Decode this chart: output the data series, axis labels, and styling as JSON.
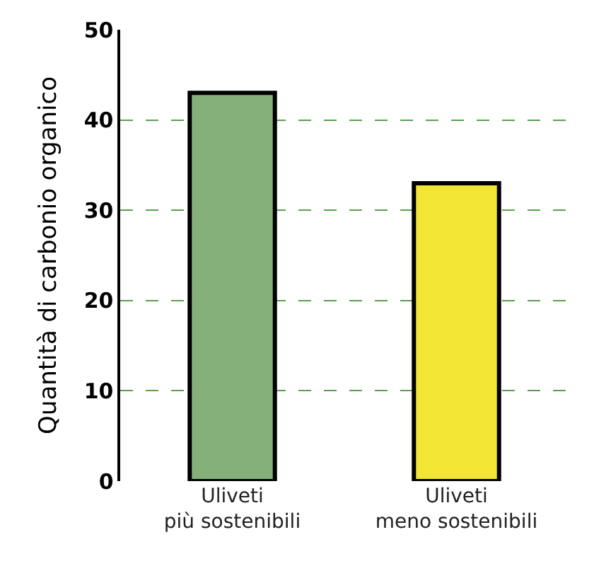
{
  "chart_data": {
    "type": "bar",
    "ylabel": "Quantità di carbonio organico",
    "categories": [
      "Uliveti\npiù sostenibili",
      "Uliveti\nmeno sostenibili"
    ],
    "values": [
      43,
      33
    ],
    "colors": [
      "#86b07a",
      "#f2e534"
    ],
    "ylim": [
      0,
      50
    ],
    "yticks": [
      0,
      10,
      20,
      30,
      40,
      50
    ],
    "grid": "y"
  }
}
